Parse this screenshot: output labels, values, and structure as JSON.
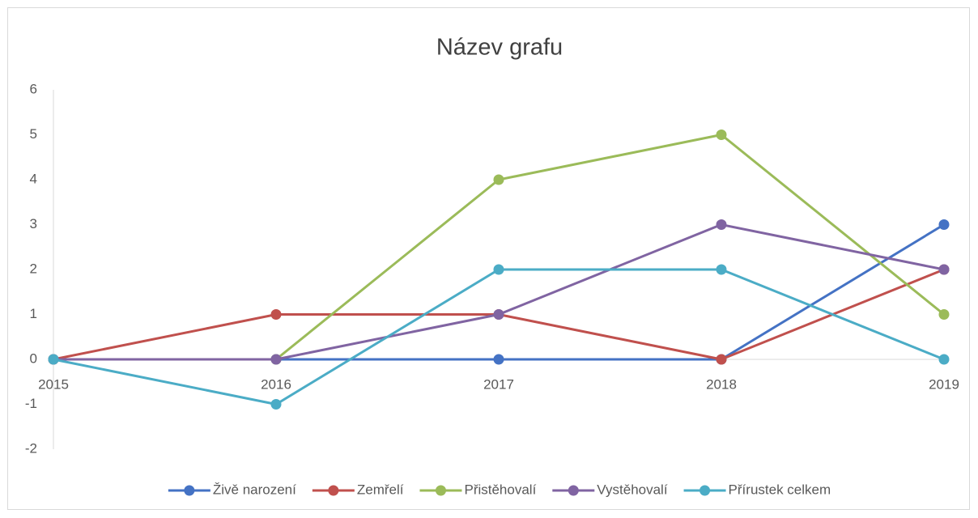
{
  "chart_data": {
    "type": "line",
    "title": "Název grafu",
    "categories": [
      "2015",
      "2016",
      "2017",
      "2018",
      "2019"
    ],
    "series": [
      {
        "name": "Živě narození",
        "color": "#4472c4",
        "values": [
          0,
          0,
          0,
          0,
          3
        ]
      },
      {
        "name": "Zemřelí",
        "color": "#c0504d",
        "values": [
          0,
          1,
          1,
          0,
          2
        ]
      },
      {
        "name": "Přistěhovalí",
        "color": "#9bbb59",
        "values": [
          0,
          0,
          4,
          5,
          1
        ]
      },
      {
        "name": "Vystěhovalí",
        "color": "#8064a2",
        "values": [
          0,
          0,
          1,
          3,
          2
        ]
      },
      {
        "name": "Přírustek celkem",
        "color": "#4bacc6",
        "values": [
          0,
          -1,
          2,
          2,
          0
        ]
      }
    ],
    "ylim": [
      -2,
      6
    ],
    "yticks": [
      -2,
      -1,
      0,
      1,
      2,
      3,
      4,
      5,
      6
    ],
    "grid": false,
    "legend": "bottom"
  }
}
